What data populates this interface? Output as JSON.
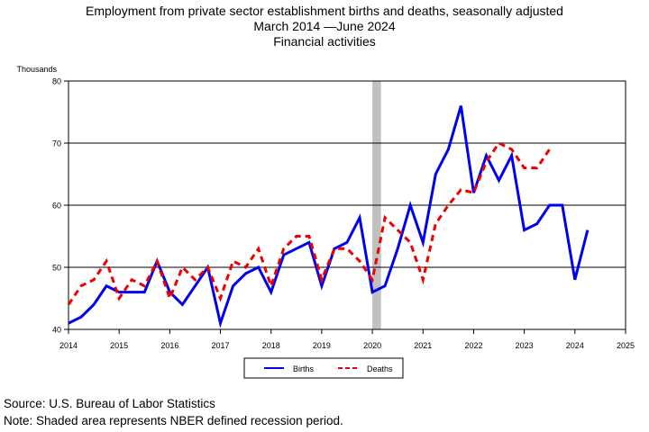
{
  "title_lines": [
    "Employment from private sector establishment births and deaths, seasonally adjusted",
    "March 2014 —June 2024",
    "Financial activities"
  ],
  "footer": {
    "source": "Source: U.S. Bureau of Labor Statistics",
    "note": "Note: Shaded area represents NBER defined recession period."
  },
  "colors": {
    "births": "#0000ee",
    "deaths": "#ee0000",
    "recession": "#c0c0c0"
  },
  "chart_data": {
    "type": "line",
    "ylabel": "Thousands",
    "xlabel": "",
    "xlim": [
      2014,
      2025
    ],
    "ylim": [
      40,
      80
    ],
    "y_ticks": [
      40,
      50,
      60,
      70,
      80
    ],
    "x_ticks": [
      "2014",
      "2015",
      "2016",
      "2017",
      "2018",
      "2019",
      "2020",
      "2021",
      "2022",
      "2023",
      "2024",
      "2025"
    ],
    "horizontal_grid": [
      50,
      60,
      70
    ],
    "recession_shading": {
      "start": 2020.0,
      "end": 2020.17
    },
    "legend_position": "bottom-center",
    "series": [
      {
        "name": "Births",
        "style": "solid",
        "points": [
          [
            2014.0,
            41
          ],
          [
            2014.25,
            42
          ],
          [
            2014.5,
            44
          ],
          [
            2014.75,
            47
          ],
          [
            2015.0,
            46
          ],
          [
            2015.25,
            46
          ],
          [
            2015.5,
            46
          ],
          [
            2015.75,
            51
          ],
          [
            2016.0,
            46
          ],
          [
            2016.25,
            44
          ],
          [
            2016.5,
            47
          ],
          [
            2016.75,
            50
          ],
          [
            2017.0,
            41
          ],
          [
            2017.25,
            47
          ],
          [
            2017.5,
            49
          ],
          [
            2017.75,
            50
          ],
          [
            2018.0,
            46
          ],
          [
            2018.25,
            52
          ],
          [
            2018.5,
            53
          ],
          [
            2018.75,
            54
          ],
          [
            2019.0,
            47
          ],
          [
            2019.25,
            53
          ],
          [
            2019.5,
            54
          ],
          [
            2019.75,
            58
          ],
          [
            2020.0,
            46
          ],
          [
            2020.25,
            47
          ],
          [
            2020.5,
            53
          ],
          [
            2020.75,
            60
          ],
          [
            2021.0,
            54
          ],
          [
            2021.25,
            65
          ],
          [
            2021.5,
            69
          ],
          [
            2021.75,
            76
          ],
          [
            2022.0,
            62
          ],
          [
            2022.25,
            68
          ],
          [
            2022.5,
            64
          ],
          [
            2022.75,
            68
          ],
          [
            2023.0,
            56
          ],
          [
            2023.25,
            57
          ],
          [
            2023.5,
            60
          ],
          [
            2023.75,
            60
          ],
          [
            2024.0,
            48
          ],
          [
            2024.25,
            56
          ]
        ]
      },
      {
        "name": "Deaths",
        "style": "dashed",
        "points": [
          [
            2014.0,
            44
          ],
          [
            2014.25,
            47
          ],
          [
            2014.5,
            48
          ],
          [
            2014.75,
            51
          ],
          [
            2015.0,
            45
          ],
          [
            2015.25,
            48
          ],
          [
            2015.5,
            47
          ],
          [
            2015.75,
            51
          ],
          [
            2016.0,
            45
          ],
          [
            2016.25,
            50
          ],
          [
            2016.5,
            48
          ],
          [
            2016.75,
            50
          ],
          [
            2017.0,
            45
          ],
          [
            2017.25,
            51
          ],
          [
            2017.5,
            50
          ],
          [
            2017.75,
            53
          ],
          [
            2018.0,
            47
          ],
          [
            2018.25,
            53
          ],
          [
            2018.5,
            55
          ],
          [
            2018.75,
            55
          ],
          [
            2019.0,
            48
          ],
          [
            2019.25,
            53
          ],
          [
            2019.5,
            53
          ],
          [
            2019.75,
            51
          ],
          [
            2020.0,
            48
          ],
          [
            2020.25,
            58
          ],
          [
            2020.5,
            56
          ],
          [
            2020.75,
            54
          ],
          [
            2021.0,
            48
          ],
          [
            2021.25,
            57
          ],
          [
            2021.5,
            60
          ],
          [
            2021.75,
            62.5
          ],
          [
            2022.0,
            62
          ],
          [
            2022.25,
            67
          ],
          [
            2022.5,
            70
          ],
          [
            2022.75,
            69
          ],
          [
            2023.0,
            66
          ],
          [
            2023.25,
            66
          ],
          [
            2023.5,
            69
          ]
        ]
      }
    ]
  }
}
